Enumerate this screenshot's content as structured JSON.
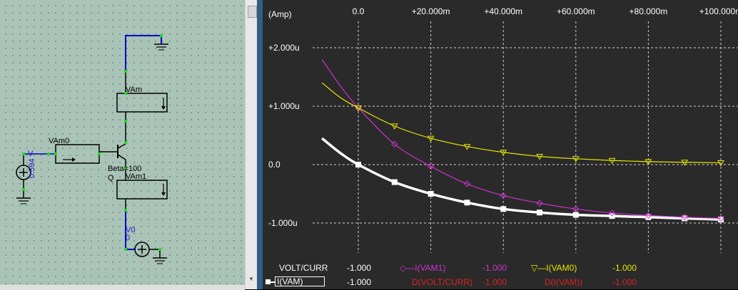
{
  "schematic": {
    "labels": {
      "vam": "VAm",
      "vam0": "VAm0",
      "vam1": "VAm1",
      "v_source": "V",
      "v_source_value": "0.594",
      "beta": "Beta=100",
      "q": "Q",
      "v0": "V0",
      "v0_value": "0"
    }
  },
  "chart_data": {
    "type": "line",
    "ylabel": "(Amp)",
    "x_ticks": [
      "0.0",
      "+20.000m",
      "+40.000m",
      "+60.000m",
      "+80.000m",
      "+100.000m"
    ],
    "y_ticks": [
      "+2.000u",
      "+1.000u",
      "0.0",
      "-1.000u"
    ],
    "xlim": [
      -0.025,
      0.1
    ],
    "ylim": [
      -1.5,
      2.5
    ],
    "x_unit": "V",
    "y_unit": "uA",
    "grid": true,
    "series": [
      {
        "name": "I(VAM)",
        "color": "#ffffff",
        "marker": "square",
        "x": [
          -0.01,
          -0.005,
          0.0,
          0.01,
          0.02,
          0.03,
          0.04,
          0.05,
          0.06,
          0.07,
          0.08,
          0.09,
          0.1
        ],
        "values": [
          0.45,
          0.2,
          0.0,
          -0.3,
          -0.5,
          -0.65,
          -0.76,
          -0.82,
          -0.86,
          -0.88,
          -0.9,
          -0.92,
          -0.94
        ]
      },
      {
        "name": "I(VAM1)",
        "color": "#cc33cc",
        "marker": "diamond",
        "x": [
          -0.01,
          -0.005,
          0.0,
          0.01,
          0.02,
          0.03,
          0.04,
          0.05,
          0.06,
          0.07,
          0.08,
          0.09,
          0.1
        ],
        "values": [
          1.8,
          1.35,
          0.97,
          0.35,
          -0.03,
          -0.33,
          -0.53,
          -0.66,
          -0.76,
          -0.83,
          -0.87,
          -0.9,
          -0.92
        ]
      },
      {
        "name": "I(VAM0)",
        "color": "#e6e600",
        "marker": "triangle-down",
        "x": [
          -0.01,
          -0.005,
          0.0,
          0.01,
          0.02,
          0.03,
          0.04,
          0.05,
          0.06,
          0.07,
          0.08,
          0.09,
          0.1
        ],
        "values": [
          1.4,
          1.15,
          0.97,
          0.66,
          0.45,
          0.31,
          0.21,
          0.14,
          0.1,
          0.07,
          0.05,
          0.04,
          0.03
        ]
      }
    ]
  },
  "legend": {
    "row1": {
      "volt_curr_label": "VOLT/CURR",
      "volt_curr_value": "-1.000",
      "ivam1_label": "I(VAM1)",
      "ivam1_value": "-1.000",
      "ivam0_label": "I(VAM0)",
      "ivam0_value": "-1.000"
    },
    "row2": {
      "ivam_label": "I(VAM)",
      "ivam_value": "-1.000",
      "d_volt_curr_label": "D(VOLT/CURR)",
      "d_volt_curr_value": "-1.000",
      "d_ivam_label": "D(I(VAM))",
      "d_ivam_value": "-1.000"
    }
  }
}
